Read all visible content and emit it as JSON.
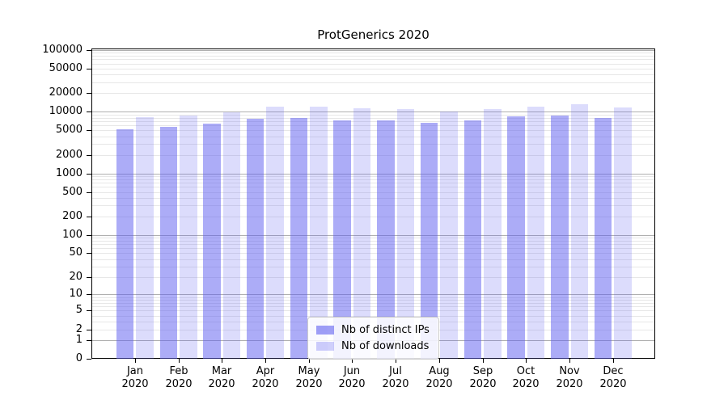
{
  "figure": {
    "title": "ProtGenerics 2020"
  },
  "chart_data": {
    "type": "bar",
    "title": "ProtGenerics 2020",
    "categories": [
      "Jan",
      "Feb",
      "Mar",
      "Apr",
      "May",
      "Jun",
      "Jul",
      "Aug",
      "Sep",
      "Oct",
      "Nov",
      "Dec"
    ],
    "category_year_label": "2020",
    "series": [
      {
        "name": "Nb of distinct IPs",
        "color": "#5a5af0",
        "opacity": 0.5,
        "values": [
          5100,
          5700,
          6300,
          7700,
          7900,
          7300,
          7200,
          6550,
          7300,
          8400,
          8700,
          7800
        ]
      },
      {
        "name": "Nb of downloads",
        "color": "#5a5af0",
        "opacity": 0.21,
        "values": [
          8200,
          8500,
          9600,
          11900,
          12100,
          11300,
          10900,
          9900,
          10900,
          12100,
          13200,
          11500
        ]
      }
    ],
    "y_scale": "log1p",
    "y_ticks": [
      0,
      1,
      2,
      5,
      10,
      20,
      50,
      100,
      200,
      500,
      1000,
      2000,
      5000,
      10000,
      20000,
      50000,
      100000
    ],
    "ylim": [
      0,
      105000
    ],
    "xlabel": "",
    "ylabel": "",
    "grid": true,
    "grid_major_color": "#b0b0b0",
    "grid_minor_color": "#e7e7e7",
    "legend_position": "bottom-center"
  }
}
